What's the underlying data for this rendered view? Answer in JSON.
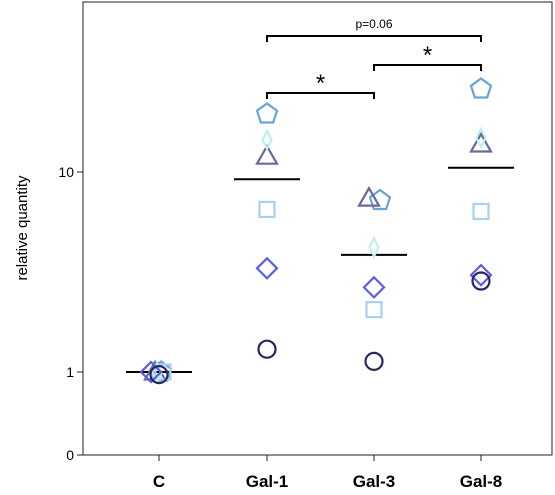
{
  "chart_data": {
    "type": "scatter",
    "title": "",
    "xlabel": "",
    "ylabel": "relative quantity",
    "y_scale": "log",
    "y_tick_labels": [
      "0",
      "1",
      "10"
    ],
    "categories": [
      "C",
      "Gal-1",
      "Gal-3",
      "Gal-8"
    ],
    "series": [
      {
        "marker": "circle",
        "color": "#25285e",
        "values": [
          0.97,
          1.3,
          1.13,
          2.85
        ]
      },
      {
        "marker": "diamond",
        "color": "#5a5de6",
        "values": [
          1.0,
          3.3,
          2.65,
          3.05
        ]
      },
      {
        "marker": "square",
        "color": "#a8d0f0",
        "values": [
          1.0,
          6.5,
          2.05,
          6.35
        ]
      },
      {
        "marker": "diamond-thin",
        "color": "#bff0ee",
        "values": [
          0.99,
          14.5,
          4.2,
          14.8
        ]
      },
      {
        "marker": "triangle",
        "color": "#6a6a9a",
        "values": [
          1.0,
          12.0,
          7.4,
          13.8
        ]
      },
      {
        "marker": "pentagon",
        "color": "#6aa3d4",
        "values": [
          1.0,
          19.5,
          7.2,
          26.0
        ]
      }
    ],
    "means": [
      1.0,
      9.2,
      3.85,
      10.5
    ],
    "significance": [
      {
        "from": "Gal-1",
        "to": "Gal-3",
        "label": "*"
      },
      {
        "from": "Gal-3",
        "to": "Gal-8",
        "label": "*"
      },
      {
        "from": "Gal-1",
        "to": "Gal-8",
        "label": "p=0.06"
      }
    ]
  }
}
